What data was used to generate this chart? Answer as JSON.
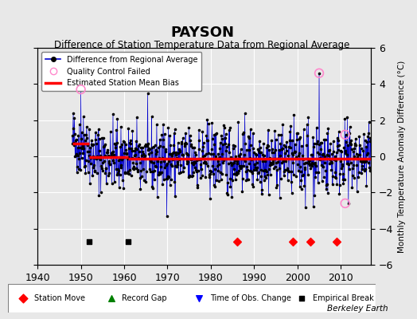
{
  "title": "PAYSON",
  "subtitle": "Difference of Station Temperature Data from Regional Average",
  "ylabel": "Monthly Temperature Anomaly Difference (°C)",
  "xlabel_bottom": "Berkeley Earth",
  "xlim": [
    1940,
    2017
  ],
  "ylim": [
    -6,
    6
  ],
  "yticks": [
    -6,
    -4,
    -2,
    0,
    2,
    4,
    6
  ],
  "xticks": [
    1940,
    1950,
    1960,
    1970,
    1980,
    1990,
    2000,
    2010
  ],
  "bg_color": "#e8e8e8",
  "plot_bg_color": "#e8e8e8",
  "line_color": "#0000cc",
  "dot_color": "#000000",
  "bias_color": "#ff0000",
  "qc_color": "#ff88cc",
  "station_move_years": [
    1986,
    1999,
    2003,
    2009
  ],
  "empirical_break_years": [
    1952,
    1961
  ],
  "qc_failed_points": [
    [
      1950,
      3.7
    ],
    [
      2005,
      4.6
    ],
    [
      2011,
      1.2
    ],
    [
      2011,
      -2.6
    ]
  ],
  "bias_segments": [
    {
      "x": [
        1948,
        1952
      ],
      "y": [
        0.7,
        0.7
      ]
    },
    {
      "x": [
        1952,
        1961
      ],
      "y": [
        -0.05,
        -0.05
      ]
    },
    {
      "x": [
        1961,
        2017
      ],
      "y": [
        -0.15,
        -0.15
      ]
    }
  ],
  "seed": 42
}
